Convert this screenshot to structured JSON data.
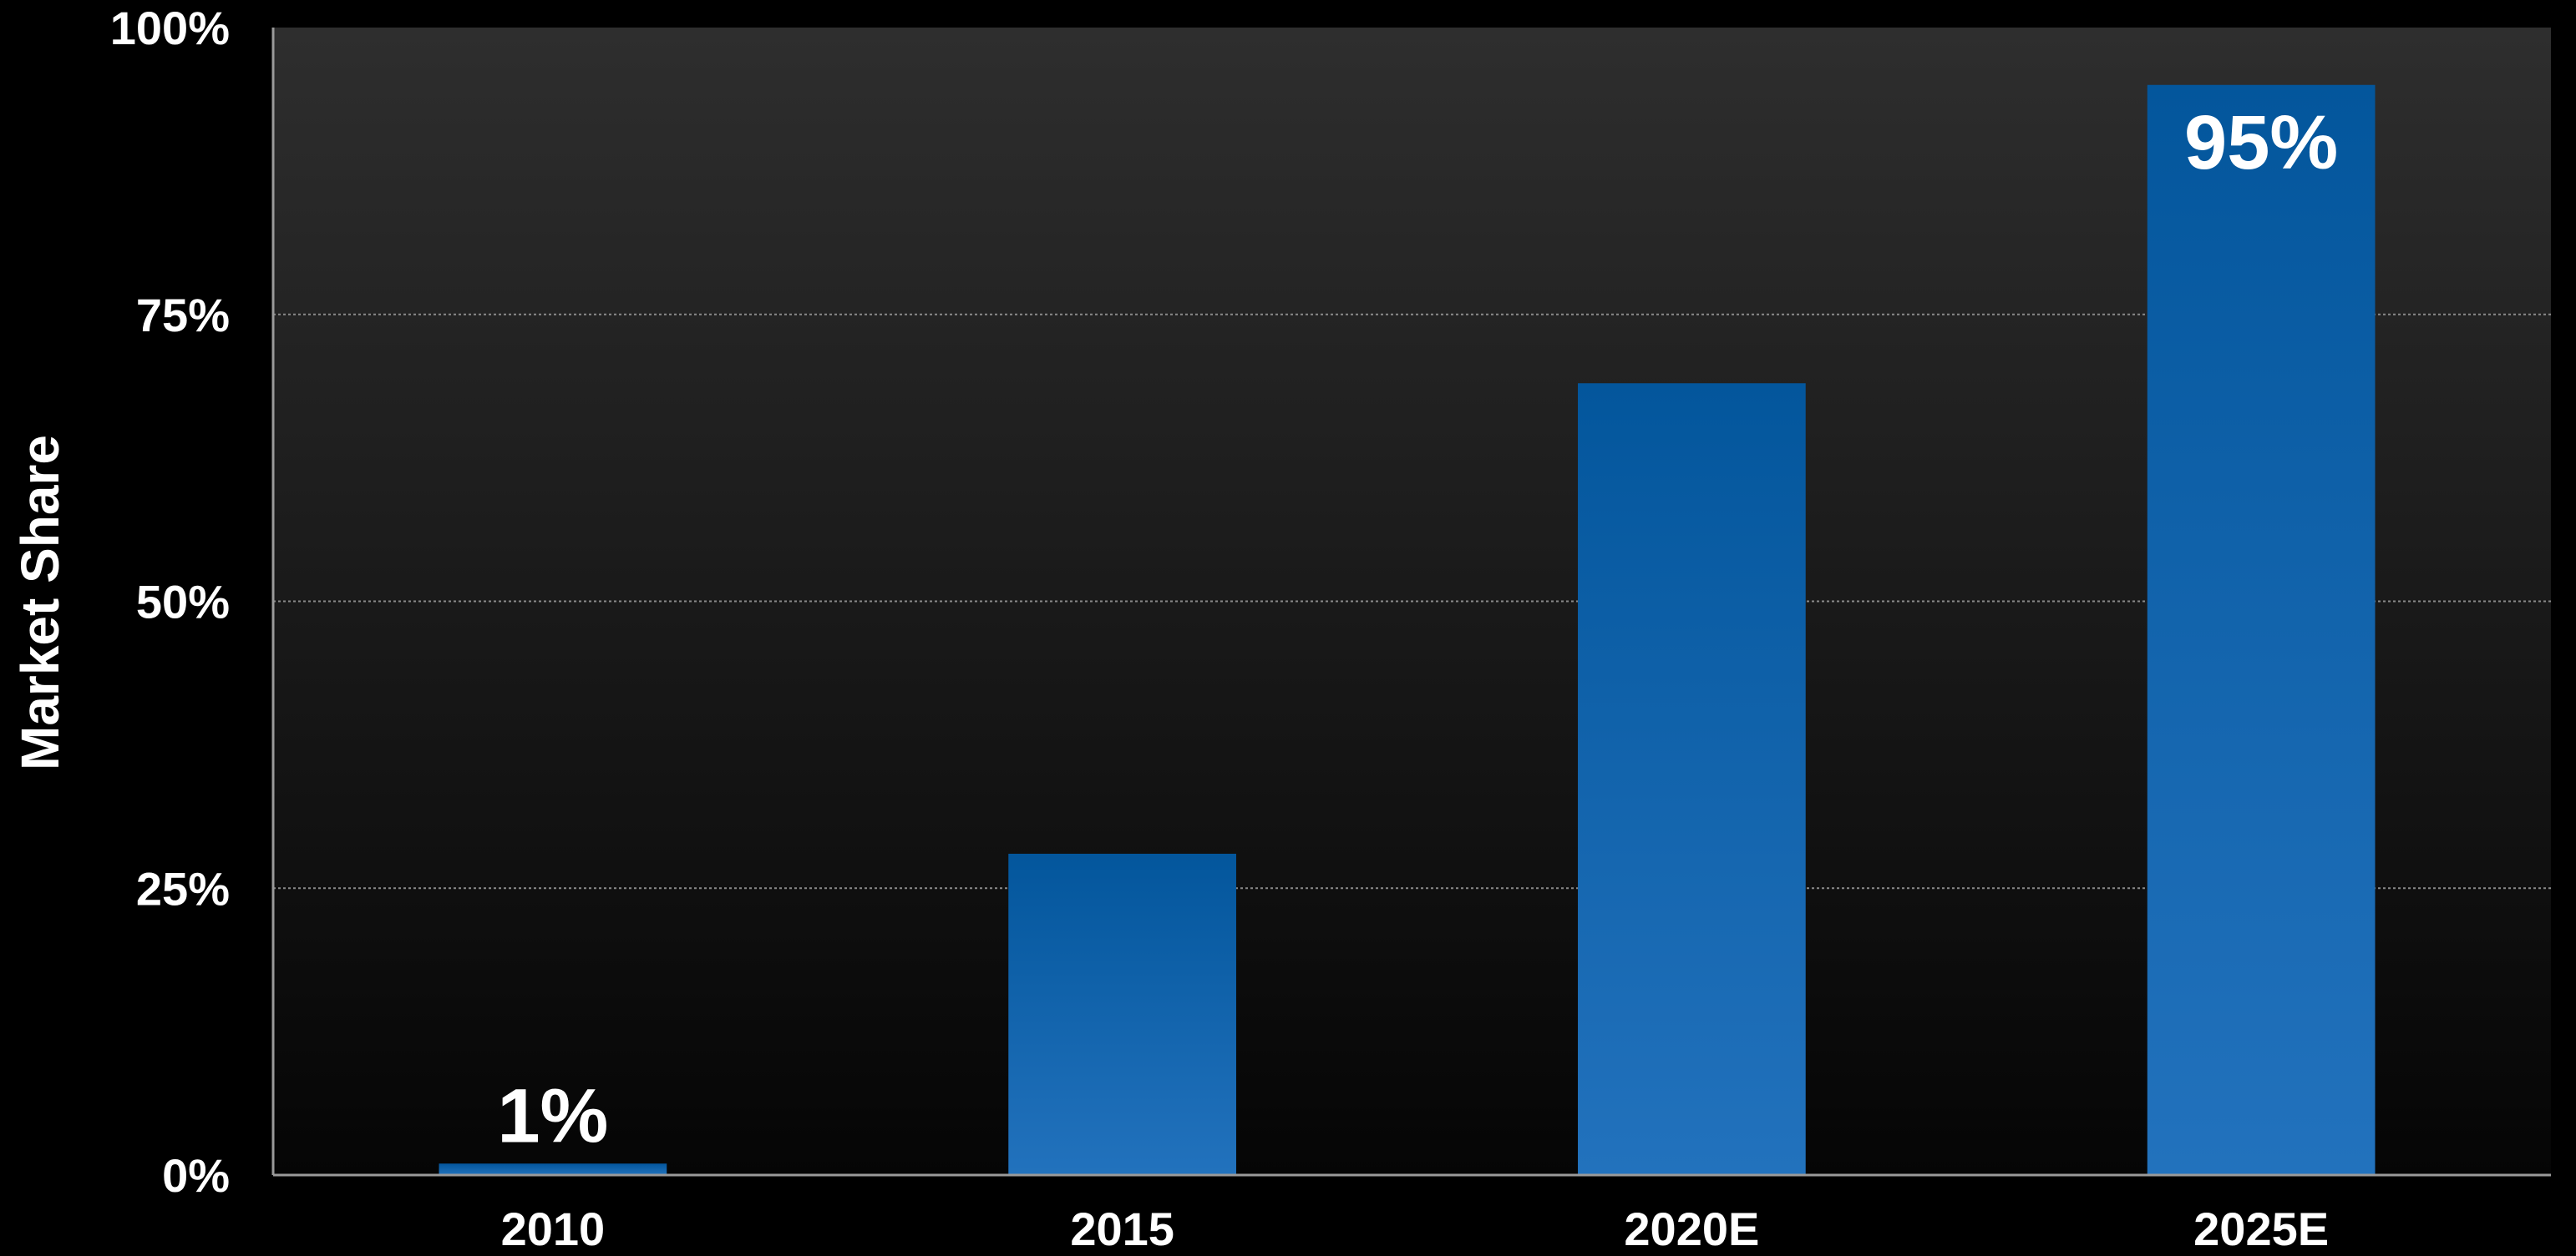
{
  "chart_data": {
    "type": "bar",
    "categories": [
      "2010",
      "2015",
      "2020E",
      "2025E"
    ],
    "values": [
      1,
      28,
      69,
      95
    ],
    "data_labels": [
      "1%",
      "",
      "",
      "95%"
    ],
    "ylabel": "Market Share",
    "xlabel": "",
    "title": "",
    "ylim": [
      0,
      100
    ],
    "yticks": [
      0,
      25,
      50,
      75,
      100
    ],
    "ytick_labels": [
      "0%",
      "25%",
      "50%",
      "75%",
      "100%"
    ],
    "grid": true,
    "legend": "none",
    "colors": {
      "page_background": "#000000",
      "plot_background_top": "#2e2e2e",
      "plot_background_bottom": "#050505",
      "bar_top": "#03569c",
      "bar_bottom": "#2272bd",
      "gridline": "#8a8a8a",
      "axis": "#9a9a9a",
      "text": "#ffffff"
    }
  }
}
